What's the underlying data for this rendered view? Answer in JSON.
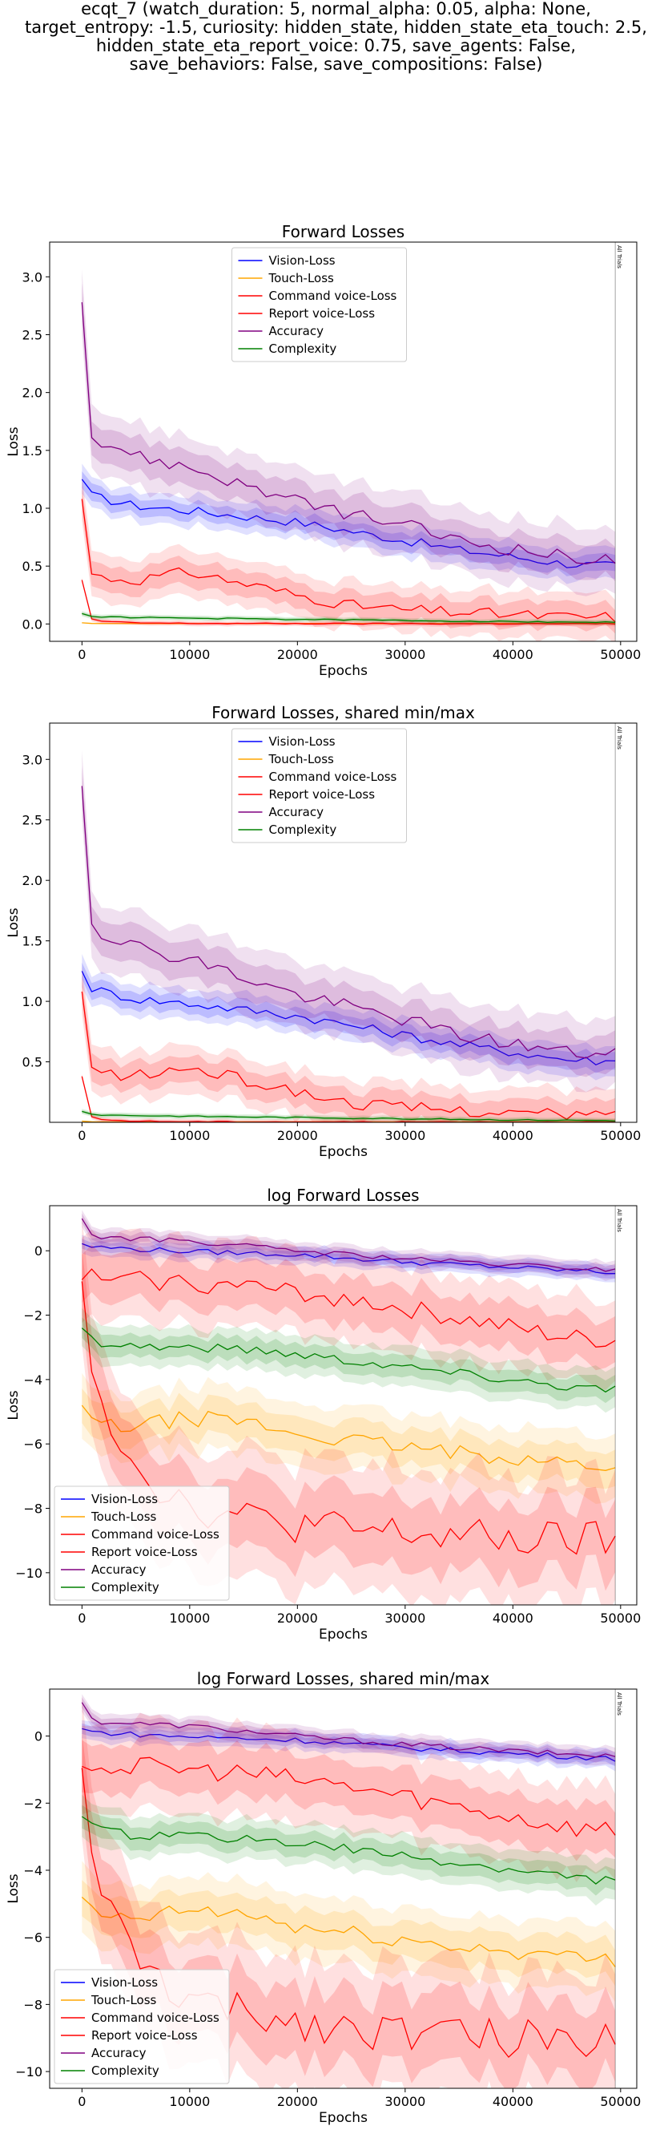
{
  "suptitle_lines": [
    "ecqt_7 (watch_duration: 5, normal_alpha: 0.05, alpha: None,",
    "target_entropy: -1.5, curiosity: hidden_state, hidden_state_eta_touch: 2.5,",
    "hidden_state_eta_report_voice: 0.75, save_agents: False,",
    "save_behaviors: False, save_compositions: False)"
  ],
  "colors": {
    "Vision-Loss": "#0000ff",
    "Touch-Loss": "#ffa500",
    "Command voice-Loss": "#ff0000",
    "Report voice-Loss": "#ff0000",
    "Accuracy": "#800080",
    "Complexity": "#008000"
  },
  "chart_data": [
    {
      "type": "line",
      "title": "Forward Losses",
      "xlabel": "Epochs",
      "ylabel": "Loss",
      "xlim": [
        -3000,
        51500
      ],
      "ylim": [
        -0.15,
        3.3
      ],
      "xticks": [
        0,
        10000,
        20000,
        30000,
        40000,
        50000
      ],
      "yticks": [
        0.0,
        0.5,
        1.0,
        1.5,
        2.0,
        2.5,
        3.0
      ],
      "ytick_labels": [
        "0.0",
        "0.5",
        "1.0",
        "1.5",
        "2.0",
        "2.5",
        "3.0"
      ],
      "legend": "upper center",
      "grid": false,
      "annotation": "All Trials",
      "vline": 49500,
      "log": false,
      "series": [
        {
          "name": "Vision-Loss",
          "x": [
            0,
            500,
            2000,
            5000,
            10000,
            15000,
            20000,
            25000,
            30000,
            35000,
            40000,
            45000,
            49500
          ],
          "y": [
            1.25,
            1.12,
            1.08,
            1.02,
            0.98,
            0.93,
            0.88,
            0.8,
            0.72,
            0.64,
            0.58,
            0.52,
            0.5
          ]
        },
        {
          "name": "Touch-Loss",
          "x": [
            0,
            500,
            2000,
            10000,
            20000,
            30000,
            40000,
            49500
          ],
          "y": [
            0.01,
            0.005,
            0.004,
            0.004,
            0.004,
            0.003,
            0.003,
            0.003
          ]
        },
        {
          "name": "Command voice-Loss",
          "x": [
            0,
            500,
            2000,
            5000,
            10000,
            15000,
            20000,
            25000,
            30000,
            35000,
            40000,
            45000,
            49500
          ],
          "y": [
            1.08,
            0.45,
            0.4,
            0.38,
            0.45,
            0.35,
            0.25,
            0.16,
            0.12,
            0.1,
            0.08,
            0.06,
            0.06
          ]
        },
        {
          "name": "Report voice-Loss",
          "x": [
            0,
            500,
            2000,
            5000,
            10000,
            20000,
            30000,
            40000,
            49500
          ],
          "y": [
            0.38,
            0.05,
            0.02,
            0.01,
            0.005,
            0.003,
            0.002,
            0.002,
            0.002
          ]
        },
        {
          "name": "Accuracy",
          "x": [
            0,
            500,
            1500,
            3000,
            5000,
            10000,
            15000,
            20000,
            25000,
            30000,
            35000,
            40000,
            45000,
            49500
          ],
          "y": [
            2.78,
            1.75,
            1.55,
            1.55,
            1.45,
            1.35,
            1.2,
            1.05,
            0.95,
            0.85,
            0.72,
            0.65,
            0.58,
            0.55
          ]
        },
        {
          "name": "Complexity",
          "x": [
            0,
            500,
            2000,
            10000,
            20000,
            30000,
            40000,
            49500
          ],
          "y": [
            0.09,
            0.07,
            0.06,
            0.05,
            0.04,
            0.03,
            0.02,
            0.015
          ]
        }
      ]
    },
    {
      "type": "line",
      "title": "Forward Losses, shared min/max",
      "xlabel": "Epochs",
      "ylabel": "Loss",
      "xlim": [
        -3000,
        51500
      ],
      "ylim": [
        0.0,
        3.3
      ],
      "xticks": [
        0,
        10000,
        20000,
        30000,
        40000,
        50000
      ],
      "yticks": [
        0.5,
        1.0,
        1.5,
        2.0,
        2.5,
        3.0
      ],
      "ytick_labels": [
        "0.5",
        "1.0",
        "1.5",
        "2.0",
        "2.5",
        "3.0"
      ],
      "legend": "upper center",
      "grid": false,
      "annotation": "All Trials",
      "vline": 49500,
      "log": false,
      "series": [
        {
          "name": "Vision-Loss",
          "x": [
            0,
            500,
            2000,
            5000,
            10000,
            15000,
            20000,
            25000,
            30000,
            35000,
            40000,
            45000,
            49500
          ],
          "y": [
            1.25,
            1.12,
            1.08,
            1.02,
            0.98,
            0.93,
            0.88,
            0.8,
            0.72,
            0.64,
            0.58,
            0.52,
            0.5
          ]
        },
        {
          "name": "Touch-Loss",
          "x": [
            0,
            500,
            2000,
            10000,
            20000,
            30000,
            40000,
            49500
          ],
          "y": [
            0.01,
            0.005,
            0.004,
            0.004,
            0.004,
            0.003,
            0.003,
            0.003
          ]
        },
        {
          "name": "Command voice-Loss",
          "x": [
            0,
            500,
            2000,
            5000,
            10000,
            15000,
            20000,
            25000,
            30000,
            35000,
            40000,
            45000,
            49500
          ],
          "y": [
            1.08,
            0.45,
            0.4,
            0.38,
            0.45,
            0.35,
            0.25,
            0.16,
            0.12,
            0.1,
            0.08,
            0.06,
            0.06
          ]
        },
        {
          "name": "Report voice-Loss",
          "x": [
            0,
            500,
            2000,
            5000,
            10000,
            20000,
            30000,
            40000,
            49500
          ],
          "y": [
            0.38,
            0.05,
            0.02,
            0.01,
            0.005,
            0.003,
            0.002,
            0.002,
            0.002
          ]
        },
        {
          "name": "Accuracy",
          "x": [
            0,
            500,
            1500,
            3000,
            5000,
            10000,
            15000,
            20000,
            25000,
            30000,
            35000,
            40000,
            45000,
            49500
          ],
          "y": [
            2.78,
            1.75,
            1.55,
            1.55,
            1.45,
            1.35,
            1.2,
            1.05,
            0.95,
            0.85,
            0.72,
            0.65,
            0.58,
            0.55
          ]
        },
        {
          "name": "Complexity",
          "x": [
            0,
            500,
            2000,
            10000,
            20000,
            30000,
            40000,
            49500
          ],
          "y": [
            0.09,
            0.07,
            0.06,
            0.05,
            0.04,
            0.03,
            0.02,
            0.015
          ]
        }
      ]
    },
    {
      "type": "line",
      "title": "log Forward Losses",
      "xlabel": "Epochs",
      "ylabel": "Loss",
      "xlim": [
        -3000,
        51500
      ],
      "ylim": [
        -11.0,
        1.4
      ],
      "xticks": [
        0,
        10000,
        20000,
        30000,
        40000,
        50000
      ],
      "yticks": [
        0,
        -2,
        -4,
        -6,
        -8,
        -10
      ],
      "ytick_labels": [
        "0",
        "−2",
        "−4",
        "−6",
        "−8",
        "−10"
      ],
      "legend": "lower left",
      "grid": false,
      "annotation": "All Trials",
      "vline": 49500,
      "log": true,
      "series": [
        {
          "name": "Vision-Loss",
          "x": [
            0,
            1000,
            5000,
            10000,
            20000,
            30000,
            40000,
            49500
          ],
          "y": [
            0.22,
            0.12,
            0.05,
            -0.02,
            -0.12,
            -0.35,
            -0.52,
            -0.68
          ]
        },
        {
          "name": "Touch-Loss",
          "x": [
            0,
            1000,
            3000,
            6000,
            10000,
            15000,
            20000,
            25000,
            30000,
            35000,
            40000,
            45000,
            49500
          ],
          "y": [
            -4.8,
            -5.3,
            -5.5,
            -5.4,
            -5.2,
            -5.3,
            -5.7,
            -5.9,
            -6.1,
            -6.3,
            -6.4,
            -6.6,
            -6.7
          ]
        },
        {
          "name": "Command voice-Loss",
          "x": [
            0,
            500,
            1500,
            3000,
            5000,
            10000,
            15000,
            20000,
            25000,
            30000,
            35000,
            40000,
            45000,
            49500
          ],
          "y": [
            -0.9,
            -0.8,
            -0.85,
            -0.95,
            -0.9,
            -1.0,
            -1.1,
            -1.3,
            -1.5,
            -1.8,
            -2.1,
            -2.4,
            -2.7,
            -2.8
          ]
        },
        {
          "name": "Report voice-Loss",
          "x": [
            0,
            500,
            1000,
            2000,
            3000,
            4000,
            5000,
            6000,
            8000,
            10000,
            15000,
            20000,
            25000,
            30000,
            35000,
            40000,
            45000,
            49500
          ],
          "y": [
            -0.95,
            -2.6,
            -3.6,
            -4.6,
            -5.5,
            -6.2,
            -6.6,
            -7.0,
            -7.5,
            -7.9,
            -8.3,
            -8.5,
            -8.7,
            -8.8,
            -8.9,
            -9.0,
            -9.0,
            -9.0
          ]
        },
        {
          "name": "Accuracy",
          "x": [
            0,
            500,
            1500,
            5000,
            10000,
            20000,
            30000,
            40000,
            49500
          ],
          "y": [
            1.0,
            0.56,
            0.43,
            0.37,
            0.3,
            0.0,
            -0.25,
            -0.45,
            -0.6
          ]
        },
        {
          "name": "Complexity",
          "x": [
            0,
            500,
            2000,
            5000,
            10000,
            15000,
            20000,
            25000,
            30000,
            35000,
            40000,
            45000,
            49500
          ],
          "y": [
            -2.4,
            -2.7,
            -2.85,
            -2.95,
            -3.0,
            -3.05,
            -3.2,
            -3.4,
            -3.6,
            -3.8,
            -4.0,
            -4.2,
            -4.3
          ]
        }
      ]
    },
    {
      "type": "line",
      "title": "log Forward Losses, shared min/max",
      "xlabel": "Epochs",
      "ylabel": "Loss",
      "xlim": [
        -3000,
        51500
      ],
      "ylim": [
        -10.5,
        1.4
      ],
      "xticks": [
        0,
        10000,
        20000,
        30000,
        40000,
        50000
      ],
      "yticks": [
        0,
        -2,
        -4,
        -6,
        -8,
        -10
      ],
      "ytick_labels": [
        "0",
        "−2",
        "−4",
        "−6",
        "−8",
        "−10"
      ],
      "legend": "lower left",
      "grid": false,
      "annotation": "All Trials",
      "vline": 49500,
      "log": true,
      "series": [
        {
          "name": "Vision-Loss",
          "x": [
            0,
            1000,
            5000,
            10000,
            20000,
            30000,
            40000,
            49500
          ],
          "y": [
            0.22,
            0.12,
            0.05,
            -0.02,
            -0.12,
            -0.35,
            -0.52,
            -0.68
          ]
        },
        {
          "name": "Touch-Loss",
          "x": [
            0,
            1000,
            3000,
            6000,
            10000,
            15000,
            20000,
            25000,
            30000,
            35000,
            40000,
            45000,
            49500
          ],
          "y": [
            -4.8,
            -5.3,
            -5.5,
            -5.4,
            -5.2,
            -5.3,
            -5.7,
            -5.9,
            -6.1,
            -6.3,
            -6.4,
            -6.6,
            -6.7
          ]
        },
        {
          "name": "Command voice-Loss",
          "x": [
            0,
            500,
            1500,
            3000,
            5000,
            10000,
            15000,
            20000,
            25000,
            30000,
            35000,
            40000,
            45000,
            49500
          ],
          "y": [
            -0.9,
            -0.8,
            -0.85,
            -0.95,
            -0.9,
            -1.0,
            -1.1,
            -1.3,
            -1.5,
            -1.8,
            -2.1,
            -2.4,
            -2.7,
            -2.8
          ]
        },
        {
          "name": "Report voice-Loss",
          "x": [
            0,
            500,
            1000,
            2000,
            3000,
            4000,
            5000,
            6000,
            8000,
            10000,
            15000,
            20000,
            25000,
            30000,
            35000,
            40000,
            45000,
            49500
          ],
          "y": [
            -0.95,
            -2.6,
            -3.6,
            -4.6,
            -5.5,
            -6.2,
            -6.6,
            -7.0,
            -7.5,
            -7.9,
            -8.3,
            -8.5,
            -8.7,
            -8.8,
            -8.9,
            -9.0,
            -9.0,
            -9.0
          ]
        },
        {
          "name": "Accuracy",
          "x": [
            0,
            500,
            1500,
            5000,
            10000,
            20000,
            30000,
            40000,
            49500
          ],
          "y": [
            1.0,
            0.56,
            0.43,
            0.37,
            0.3,
            0.0,
            -0.25,
            -0.45,
            -0.6
          ]
        },
        {
          "name": "Complexity",
          "x": [
            0,
            500,
            2000,
            5000,
            10000,
            15000,
            20000,
            25000,
            30000,
            35000,
            40000,
            45000,
            49500
          ],
          "y": [
            -2.4,
            -2.7,
            -2.85,
            -2.95,
            -3.0,
            -3.05,
            -3.2,
            -3.4,
            -3.6,
            -3.8,
            -4.0,
            -4.2,
            -4.3
          ]
        }
      ]
    }
  ]
}
